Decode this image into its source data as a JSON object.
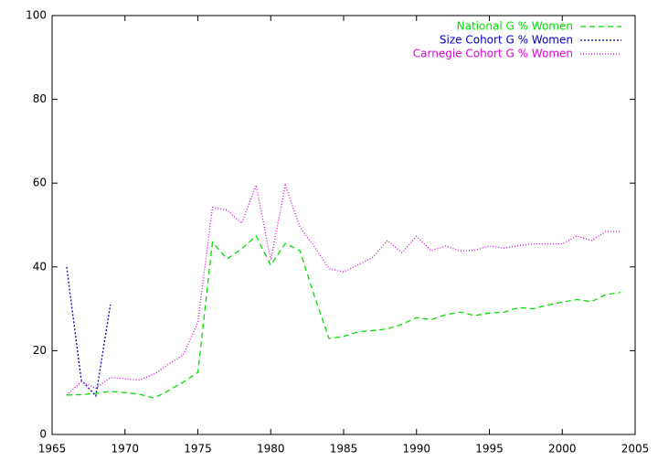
{
  "chart_data": {
    "type": "line",
    "x": [
      1966,
      1967,
      1968,
      1969,
      1970,
      1971,
      1972,
      1973,
      1974,
      1975,
      1976,
      1977,
      1978,
      1979,
      1980,
      1981,
      1982,
      1983,
      1984,
      1985,
      1986,
      1987,
      1988,
      1989,
      1990,
      1991,
      1992,
      1993,
      1994,
      1995,
      1996,
      1997,
      1998,
      1999,
      2000,
      2001,
      2002,
      2003,
      2004
    ],
    "series": [
      {
        "name": "National G % Women",
        "color": "#00e000",
        "dash": "6,4",
        "values": [
          9.4,
          9.5,
          9.8,
          10.3,
          10,
          9.6,
          8.7,
          10.5,
          12.5,
          14.8,
          45.9,
          41.9,
          44.3,
          47.4,
          40.4,
          45.6,
          43.9,
          33,
          22.9,
          23.4,
          24.5,
          24.8,
          25.2,
          26.3,
          27.9,
          27.4,
          28.6,
          29.2,
          28.4,
          29,
          29.2,
          30.3,
          30,
          30.9,
          31.6,
          32.2,
          31.7,
          33.4,
          33.9
        ]
      },
      {
        "name": "Size Cohort G % Women",
        "color": "#0000c0",
        "dash": "2,2",
        "values": [
          40,
          13,
          9.2,
          31,
          null,
          null,
          null,
          null,
          null,
          null,
          null,
          null,
          null,
          null,
          null,
          null,
          null,
          null,
          null,
          null,
          null,
          null,
          null,
          null,
          null,
          null,
          null,
          null,
          null,
          null,
          null,
          null,
          null,
          null,
          null,
          null,
          null,
          null,
          null
        ]
      },
      {
        "name": "Carnegie Cohort G % Women",
        "color": "#e000e0",
        "dash": "1,2",
        "values": [
          9.4,
          12.6,
          11,
          13.6,
          13.3,
          13,
          14.4,
          16.8,
          19,
          26.8,
          54.2,
          53.6,
          50.4,
          59.5,
          41.6,
          59.5,
          49.5,
          44.8,
          39.6,
          38.8,
          40.5,
          42.3,
          46.3,
          43.4,
          47.3,
          43.9,
          45,
          43.8,
          44,
          45,
          44.5,
          45.1,
          45.5,
          45.5,
          45.5,
          47.4,
          46.3,
          48.5,
          48.4
        ]
      }
    ],
    "xlim": [
      1965,
      2005
    ],
    "xticks": [
      1965,
      1970,
      1975,
      1980,
      1985,
      1990,
      1995,
      2000,
      2005
    ],
    "ylim": [
      0,
      100
    ],
    "yticks": [
      0,
      20,
      40,
      60,
      80,
      100
    ],
    "legend": "top-right"
  }
}
